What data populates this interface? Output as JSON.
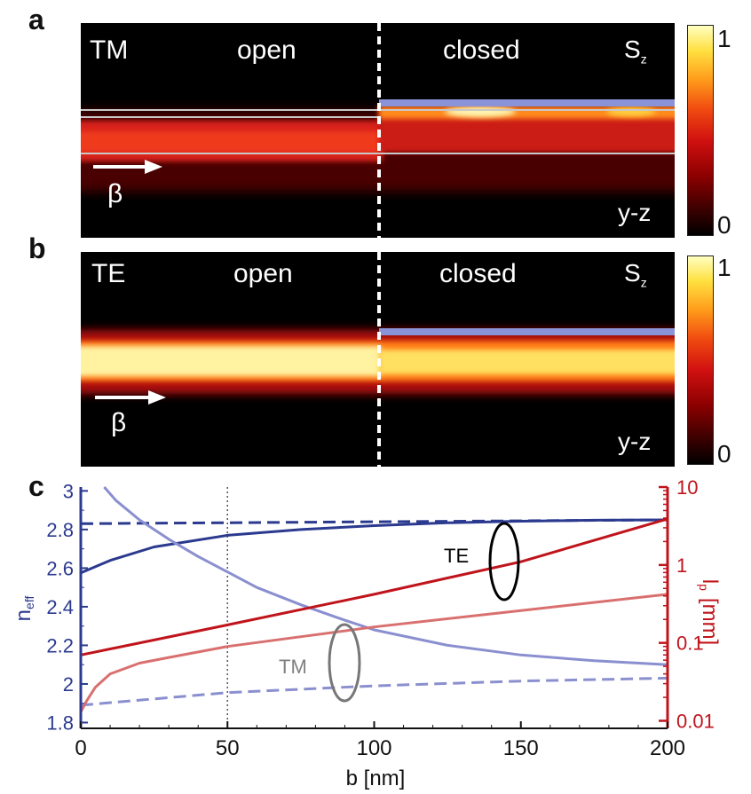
{
  "panels": {
    "a": {
      "letter": "a",
      "mode": "TM",
      "left_label": "open",
      "right_label": "closed",
      "field_label": "S",
      "field_sub": "z",
      "plane": "y-z",
      "beta": "β",
      "colorbar": {
        "max": "1",
        "min": "0"
      }
    },
    "b": {
      "letter": "b",
      "mode": "TE",
      "left_label": "open",
      "right_label": "closed",
      "field_label": "S",
      "field_sub": "z",
      "plane": "y-z",
      "beta": "β",
      "colorbar": {
        "max": "1",
        "min": "0"
      }
    },
    "c": {
      "letter": "c"
    }
  },
  "colors": {
    "blue": "#2b3a8f",
    "light_blue": "#8a8fcf",
    "red": "#c0141c",
    "light_red": "#d9706f",
    "gray": "#808080"
  },
  "chart_data": {
    "type": "line",
    "xlabel": "b [nm]",
    "ylabel_left": "n",
    "ylabel_left_sub": "eff",
    "ylabel_right": "l",
    "ylabel_right_sub": "p",
    "ylabel_right_unit": "[mm]",
    "xlim": [
      0,
      200
    ],
    "ylim_left": [
      1.77,
      3.02
    ],
    "ylim_right_log": [
      0.008,
      10
    ],
    "x_ticks": [
      "0",
      "50",
      "100",
      "150",
      "200"
    ],
    "y_ticks_left": [
      "1.8",
      "2",
      "2.2",
      "2.4",
      "2.6",
      "2.8",
      "3"
    ],
    "y_ticks_right": [
      "0.01",
      "0.1",
      "1",
      "10"
    ],
    "vline_x": 50,
    "annotations": {
      "te": "TE",
      "tm": "TM"
    },
    "series": [
      {
        "axis": "left",
        "style": "solid",
        "color": "#2b3a8f",
        "x": [
          0,
          10,
          25,
          50,
          75,
          100,
          125,
          150,
          175,
          200
        ],
        "y": [
          2.575,
          2.64,
          2.71,
          2.77,
          2.8,
          2.82,
          2.835,
          2.843,
          2.848,
          2.85
        ]
      },
      {
        "axis": "left",
        "style": "dashed",
        "color": "#2b3a8f",
        "x": [
          0,
          200
        ],
        "y": [
          2.83,
          2.85
        ]
      },
      {
        "axis": "left",
        "style": "solid",
        "color": "#8a8fcf",
        "x": [
          8,
          12,
          20,
          30,
          40,
          50,
          60,
          75,
          90,
          100,
          125,
          150,
          175,
          200
        ],
        "y": [
          3.02,
          2.95,
          2.85,
          2.75,
          2.66,
          2.58,
          2.5,
          2.41,
          2.33,
          2.28,
          2.2,
          2.15,
          2.12,
          2.1
        ]
      },
      {
        "axis": "left",
        "style": "dashed",
        "color": "#8a8fcf",
        "x": [
          0,
          50,
          100,
          150,
          200
        ],
        "y": [
          1.89,
          1.955,
          1.99,
          2.015,
          2.03
        ]
      },
      {
        "axis": "right",
        "style": "solid",
        "color": "#c0141c",
        "x": [
          0,
          50,
          100,
          150,
          200
        ],
        "y": [
          0.07,
          0.17,
          0.42,
          1.1,
          3.9
        ]
      },
      {
        "axis": "right",
        "style": "solid",
        "color": "#d9706f",
        "x": [
          0,
          2,
          5,
          10,
          20,
          30,
          50,
          75,
          100,
          150,
          200
        ],
        "y": [
          0.013,
          0.018,
          0.027,
          0.04,
          0.055,
          0.065,
          0.09,
          0.12,
          0.16,
          0.26,
          0.42
        ]
      }
    ]
  }
}
